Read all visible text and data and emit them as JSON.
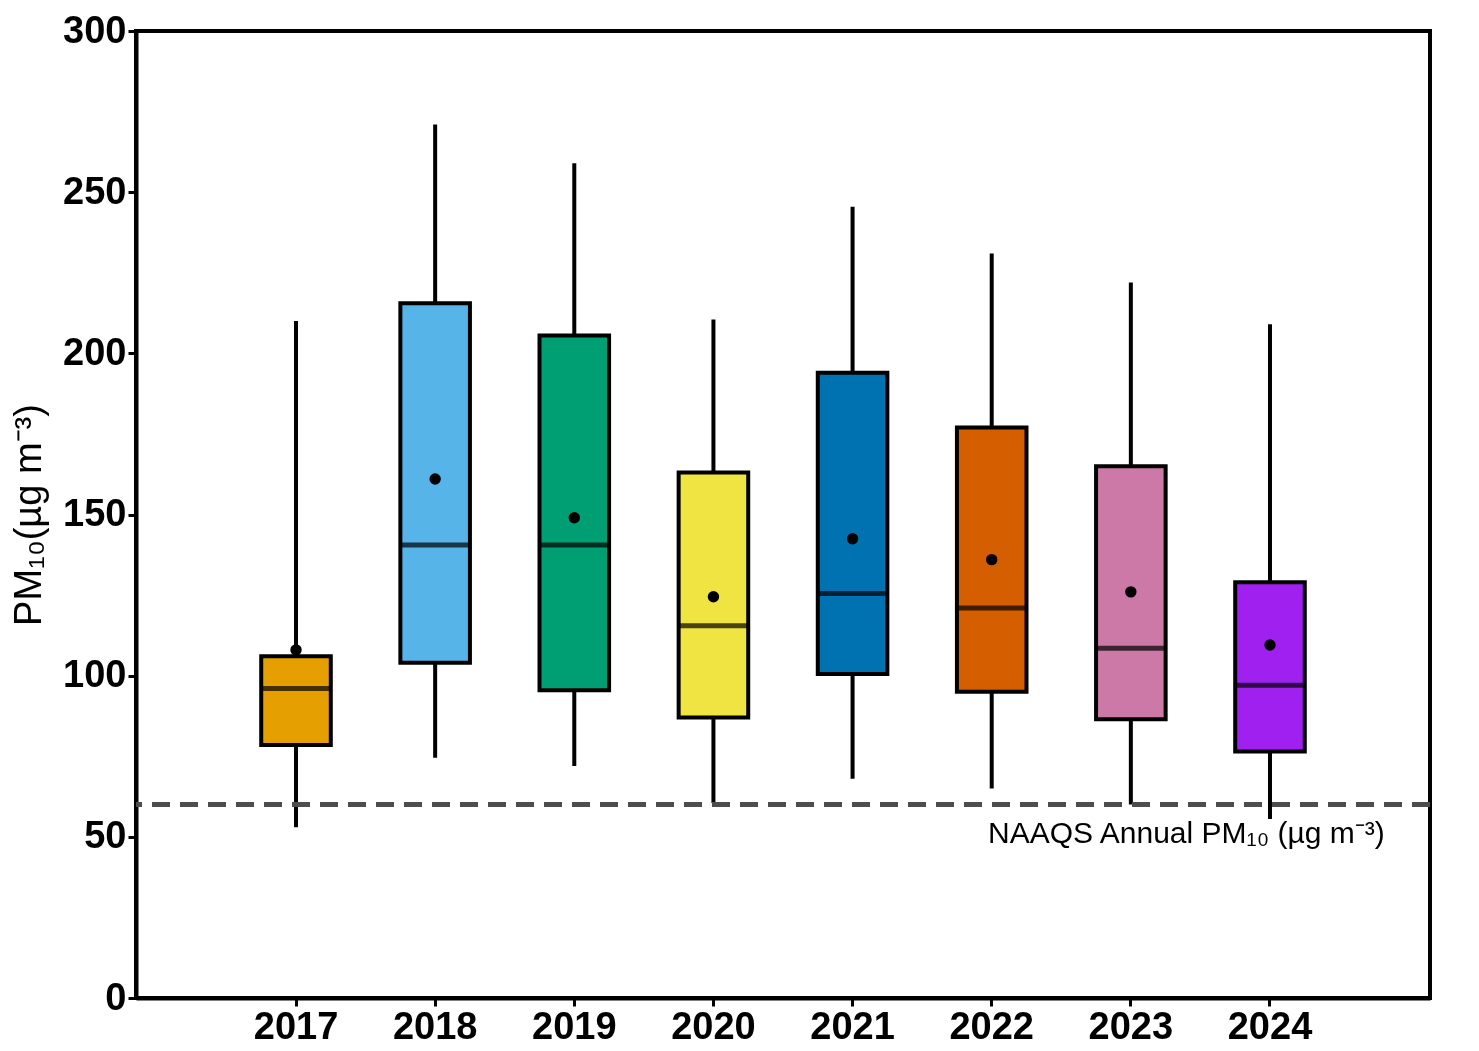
{
  "chart_data": {
    "type": "box",
    "ylabel": "PM₁₀(µg m⁻³)",
    "categories": [
      "2017",
      "2018",
      "2019",
      "2020",
      "2021",
      "2022",
      "2023",
      "2024"
    ],
    "colors": [
      "#e69f00",
      "#56b4e9",
      "#009e73",
      "#f0e442",
      "#0072b2",
      "#d55e00",
      "#cc79a7",
      "#a020f0"
    ],
    "boxes": [
      {
        "low": 53,
        "q1": 78.5,
        "median": 96,
        "q3": 106,
        "high": 210,
        "mean": 108
      },
      {
        "low": 74.5,
        "q1": 104,
        "median": 140.5,
        "q3": 215.5,
        "high": 271,
        "mean": 161
      },
      {
        "low": 72,
        "q1": 95.5,
        "median": 140.5,
        "q3": 205.5,
        "high": 259,
        "mean": 149
      },
      {
        "low": 60.5,
        "q1": 87,
        "median": 115.5,
        "q3": 163,
        "high": 210.5,
        "mean": 124.5
      },
      {
        "low": 68,
        "q1": 100.5,
        "median": 125.5,
        "q3": 194,
        "high": 245.5,
        "mean": 142.5
      },
      {
        "low": 65,
        "q1": 95,
        "median": 121,
        "q3": 177,
        "high": 231,
        "mean": 136
      },
      {
        "low": 60,
        "q1": 86.5,
        "median": 108.5,
        "q3": 165,
        "high": 222,
        "mean": 126
      },
      {
        "low": 55.5,
        "q1": 76.5,
        "median": 97,
        "q3": 129,
        "high": 209,
        "mean": 109.5
      }
    ],
    "ylim": [
      0,
      300
    ],
    "yticks": [
      0,
      50,
      100,
      150,
      200,
      250,
      300
    ],
    "ref_lines": [
      {
        "axis": "y",
        "value": 60,
        "label": "NAAQS Annual PM₁₀ (µg m⁻³)",
        "color": "#4d4d4d",
        "line_style": "dashed"
      }
    ],
    "grid": false,
    "legend": false
  }
}
